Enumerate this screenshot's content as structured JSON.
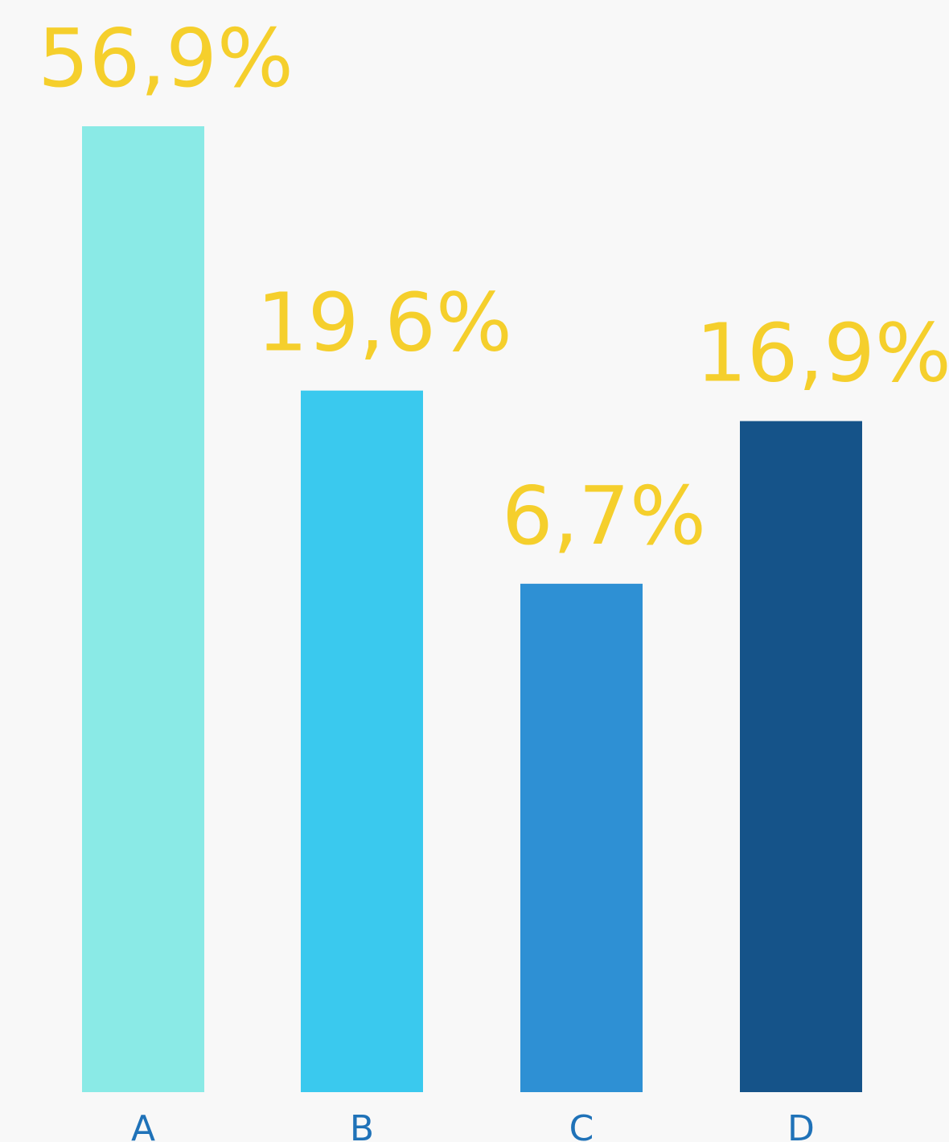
{
  "chart_data": {
    "type": "bar",
    "categories": [
      "A",
      "B",
      "C",
      "D"
    ],
    "values": [
      56.9,
      19.6,
      6.7,
      16.9
    ],
    "value_labels": [
      "56,9%",
      "19,6%",
      "6,7%",
      "16,9%"
    ],
    "title": "",
    "xlabel": "",
    "ylabel": "",
    "bar_colors": [
      "#8aeae6",
      "#3ac9ee",
      "#2e90d4",
      "#155389"
    ],
    "label_color": "#f5cf2c",
    "category_color": "#1f72b8",
    "background": "#f8f8f8",
    "grid": false,
    "legend": "none"
  }
}
